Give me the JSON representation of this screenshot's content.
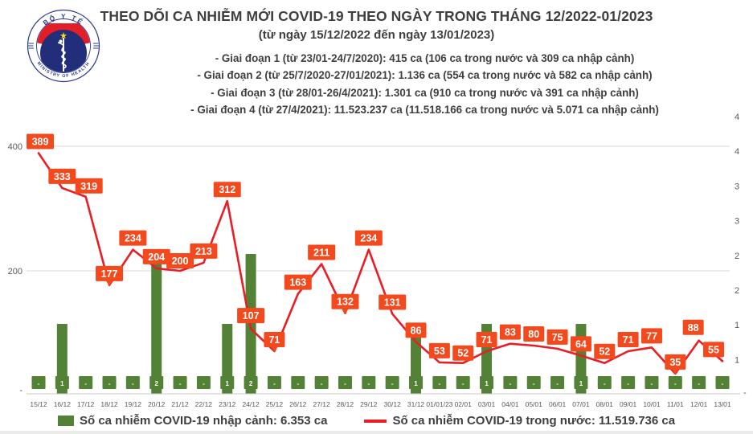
{
  "header": {
    "title": "THEO DÕI CA NHIỄM MỚI COVID-19 THEO NGÀY TRONG THÁNG 12/2022-01/2023",
    "subtitle": "(từ ngày 15/12/2022 đến ngày 13/01/2023)",
    "bullets": [
      "- Giai đoạn 1 (từ 23/01-24/7/2020): 415 ca (106 ca trong nước và 309 ca nhập cảnh)",
      "- Giai đoạn 2 (từ 25/7/2020-27/01/2021): 1.136 ca (554 ca trong nước và 582 ca nhập cảnh)",
      "- Giai đoạn 3 (từ 28/01-26/4/2021): 1.301 ca (910 ca trong nước và 391 ca nhập cảnh)",
      "- Giai đoạn 4 (từ 27/4/2021): 11.523.237 ca (11.518.166 ca trong nước và 5.071 ca nhập cảnh)"
    ],
    "logo": {
      "top_text": "BỘ Y TẾ",
      "bottom_text": "MINISTRY OF HEALTH"
    }
  },
  "chart_data": {
    "type": "line+bar",
    "title": "THEO DÕI CA NHIỄM MỚI COVID-19 THEO NGÀY TRONG THÁNG 12/2022-01/2023",
    "categories": [
      "15/12",
      "16/12",
      "17/12",
      "18/12",
      "19/12",
      "20/12",
      "21/12",
      "22/12",
      "23/12",
      "24/12",
      "25/12",
      "26/12",
      "27/12",
      "28/12",
      "29/12",
      "30/12",
      "31/12",
      "01/01/23",
      "02/01",
      "03/01",
      "04/01",
      "05/01",
      "06/01",
      "07/01",
      "08/01",
      "09/01",
      "10/01",
      "11/01",
      "12/01",
      "13/01"
    ],
    "series": [
      {
        "name": "Số ca nhiễm COVID-19 trong nước",
        "type": "line",
        "color": "#ea1c24",
        "values": [
          389,
          333,
          319,
          177,
          234,
          204,
          200,
          213,
          312,
          107,
          71,
          163,
          211,
          132,
          234,
          131,
          86,
          53,
          52,
          71,
          83,
          80,
          75,
          64,
          52,
          71,
          77,
          35,
          88,
          55
        ]
      },
      {
        "name": "Số ca nhiễm COVID-19 nhập cảnh",
        "type": "bar",
        "color": "#538135",
        "values": [
          0,
          1,
          0,
          0,
          0,
          2,
          0,
          0,
          1,
          2,
          0,
          0,
          0,
          0,
          0,
          0,
          1,
          0,
          0,
          1,
          0,
          0,
          0,
          1,
          0,
          0,
          0,
          0,
          0,
          0
        ],
        "value_labels": [
          "-",
          "1",
          "-",
          "-",
          "-",
          "2",
          "-",
          "-",
          "1",
          "2",
          "-",
          "-",
          "-",
          "-",
          "-",
          "-",
          "1",
          "-",
          "-",
          "1",
          "-",
          "-",
          "-",
          "1",
          "-",
          "-",
          "-",
          "-",
          "-",
          "-"
        ]
      }
    ],
    "left_axis": {
      "tick_labels": [
        "400",
        "200",
        "-"
      ],
      "tick_values": [
        400,
        200,
        0
      ]
    },
    "right_axis": {
      "tick_labels_top_to_bottom": [
        "4",
        "4",
        "3",
        "3",
        "2",
        "2",
        "1",
        "1"
      ],
      "bottom_label": "-"
    },
    "data_label_box_color": "#f4491d",
    "gridline_color": "#d9d9d9",
    "axis_text_color": "#595959",
    "grid": "horizontal",
    "legend_position": "bottom"
  },
  "legend": {
    "bar_label": "Số ca nhiễm COVID-19 nhập cảnh: 6.353 ca",
    "line_label": "Số ca nhiễm COVID-19 trong nước: 11.519.736 ca"
  }
}
